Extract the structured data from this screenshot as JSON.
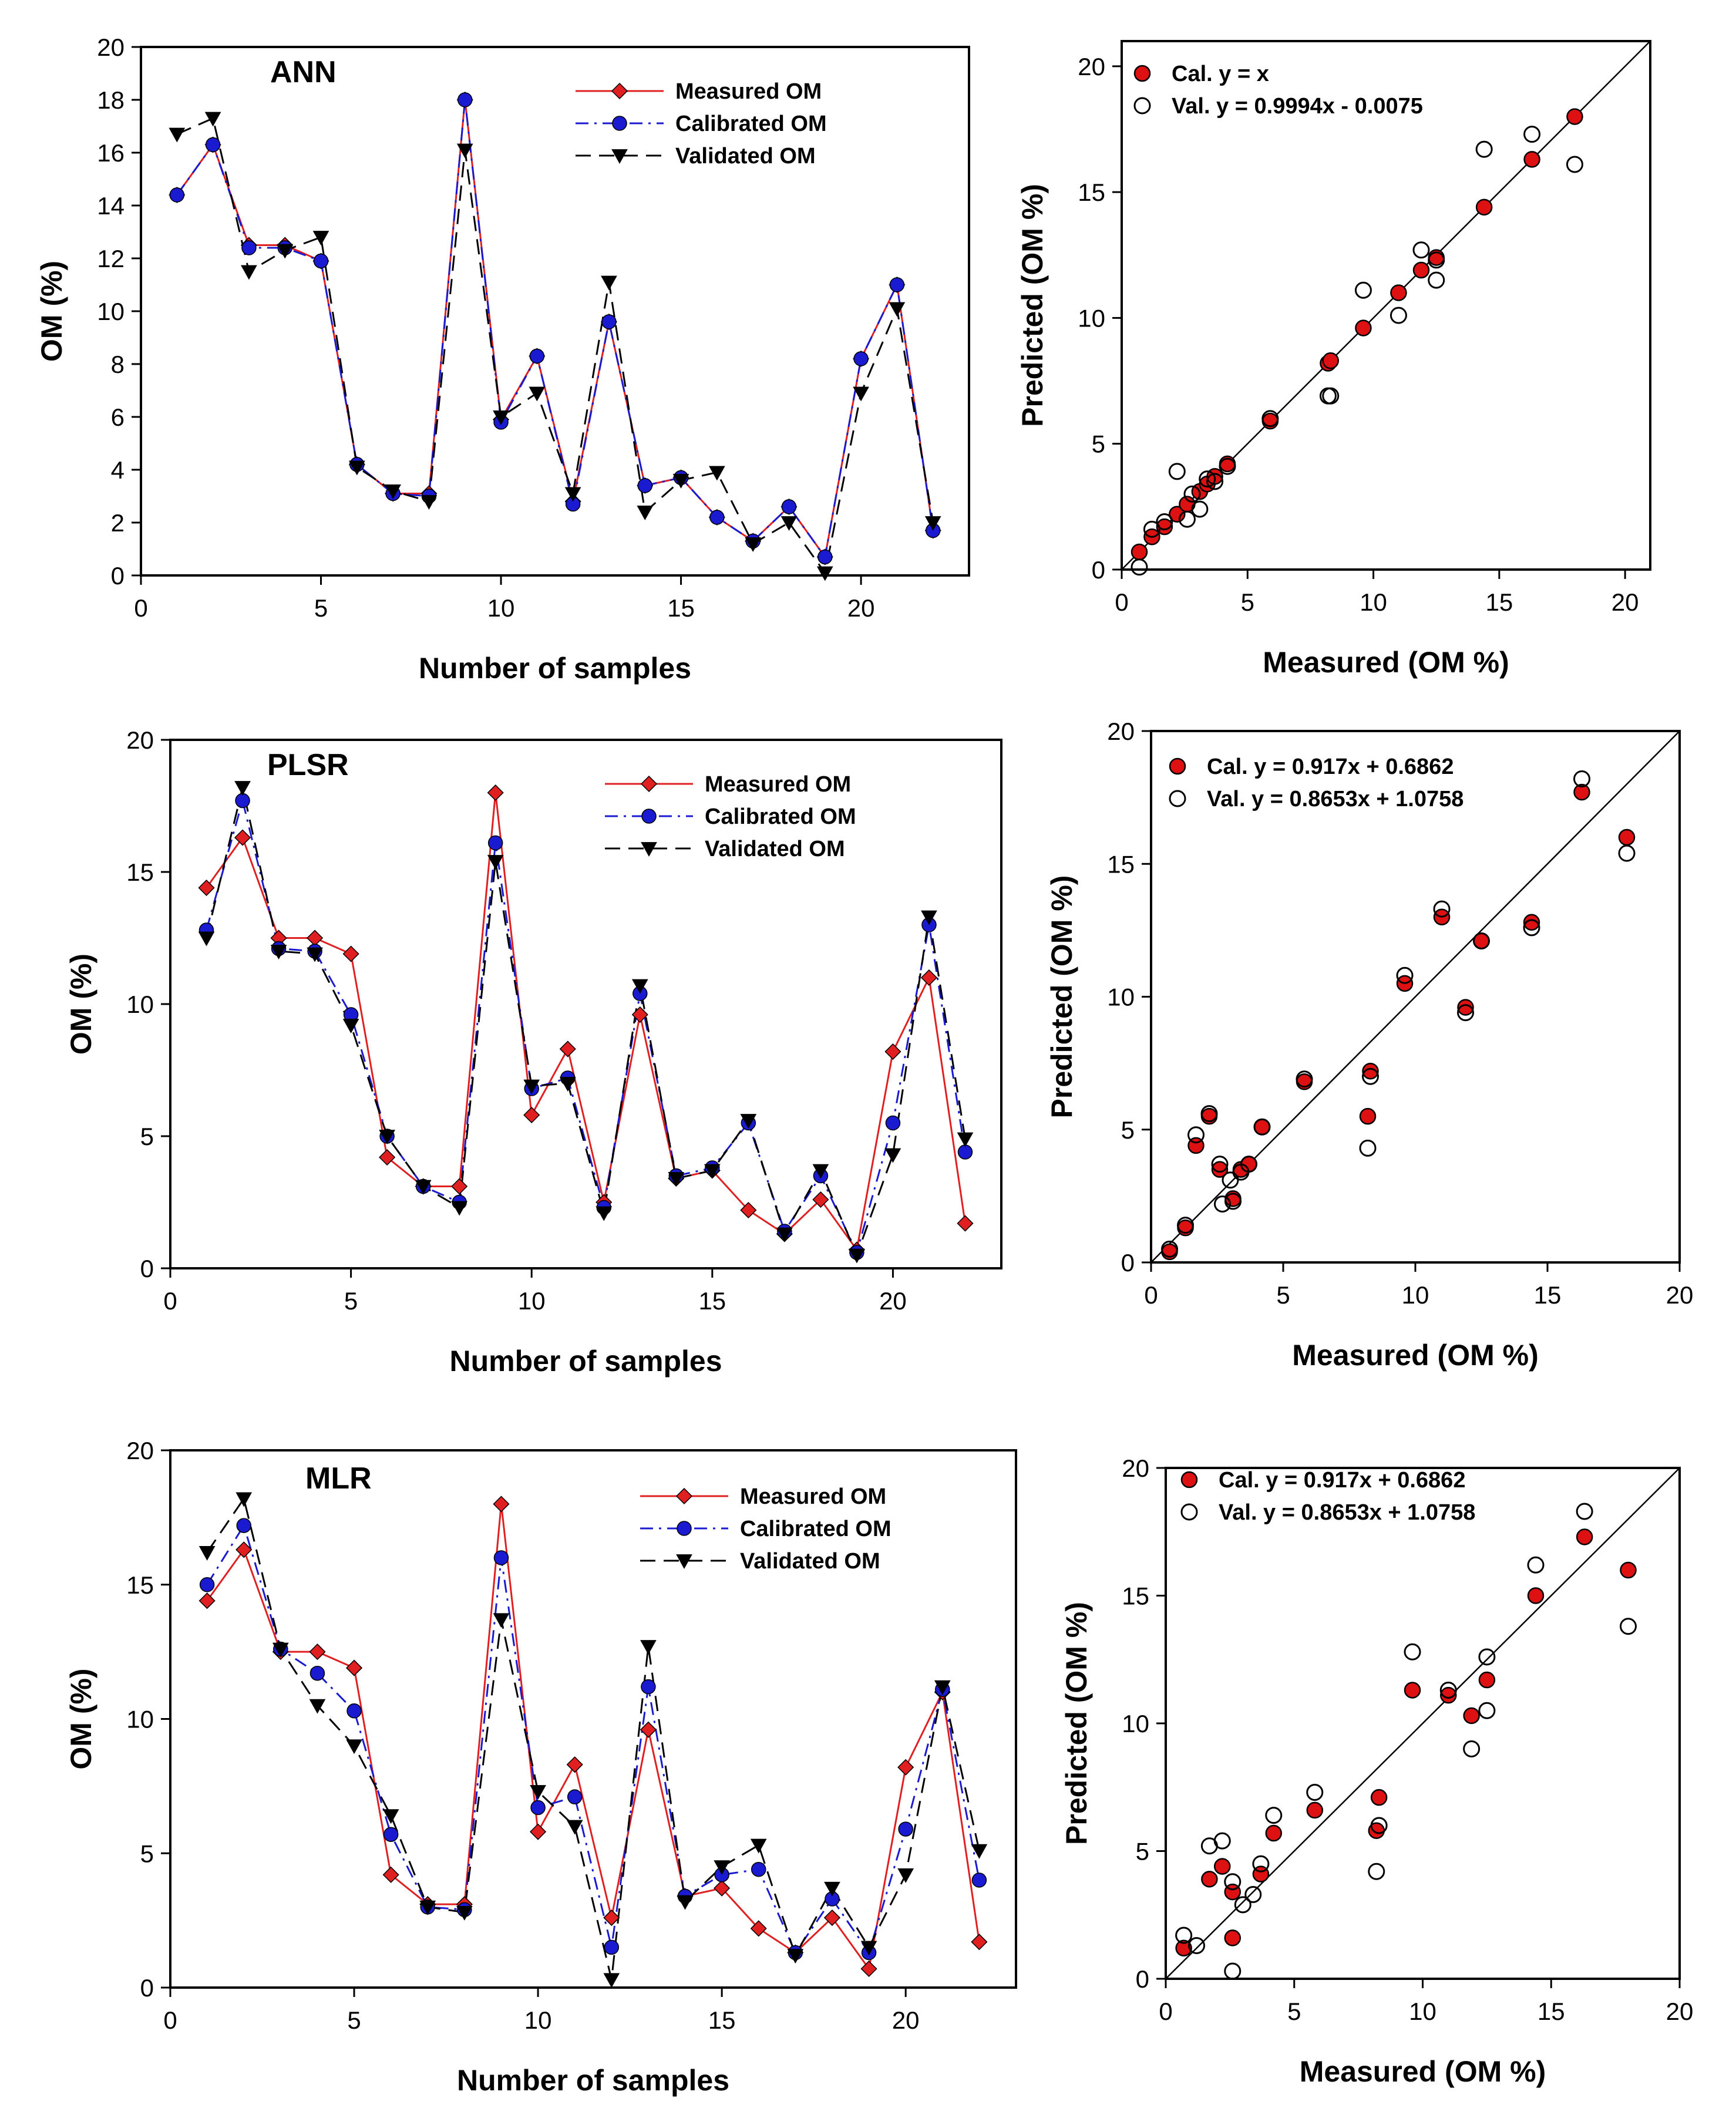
{
  "colors": {
    "measured": "#e02020",
    "calibrated": "#1a1ad0",
    "validated": "#000000",
    "cal_fill": "#dd1111",
    "line_11": "#000000"
  },
  "chart_data": [
    {
      "type": "line",
      "title": "ANN",
      "xlabel": "Number of samples",
      "ylabel": "OM (%)",
      "xlim": [
        0,
        23
      ],
      "ylim": [
        0,
        20
      ],
      "xticks": [
        0,
        5,
        10,
        15,
        20
      ],
      "yticks": [
        0,
        2,
        4,
        6,
        8,
        10,
        12,
        14,
        16,
        18,
        20
      ],
      "legend_position": "top-right",
      "x": [
        1,
        2,
        3,
        4,
        5,
        6,
        7,
        8,
        9,
        10,
        11,
        12,
        13,
        14,
        15,
        16,
        17,
        18,
        19,
        20,
        21,
        22
      ],
      "series": [
        {
          "name": "Measured OM",
          "values": [
            14.4,
            16.3,
            12.5,
            12.5,
            11.9,
            4.2,
            3.1,
            3.1,
            18.0,
            5.9,
            8.3,
            2.8,
            9.6,
            3.4,
            3.7,
            2.2,
            1.3,
            2.6,
            0.7,
            8.2,
            11.0,
            1.7
          ]
        },
        {
          "name": "Calibrated OM",
          "values": [
            14.4,
            16.3,
            12.4,
            12.4,
            11.9,
            4.2,
            3.1,
            3.0,
            18.0,
            5.8,
            8.3,
            2.7,
            9.6,
            3.4,
            3.7,
            2.2,
            1.3,
            2.6,
            0.7,
            8.2,
            11.0,
            1.7
          ]
        },
        {
          "name": "Validated   OM",
          "values": [
            16.7,
            17.3,
            11.5,
            12.3,
            12.8,
            4.1,
            3.2,
            2.8,
            16.1,
            6.0,
            6.9,
            3.1,
            11.1,
            2.4,
            3.6,
            3.9,
            1.2,
            2.0,
            0.1,
            6.9,
            10.1,
            2.0
          ]
        }
      ]
    },
    {
      "type": "scatter",
      "xlabel": "Measured (OM %)",
      "ylabel": "Predicted (OM %)",
      "xlim": [
        0,
        21
      ],
      "ylim": [
        0,
        21
      ],
      "xticks": [
        0,
        5,
        10,
        15,
        20
      ],
      "yticks": [
        0,
        5,
        10,
        15,
        20
      ],
      "legend_position": "top-left",
      "series": [
        {
          "name": "Cal.",
          "equation": "y = x",
          "points": [
            [
              0.7,
              0.7
            ],
            [
              1.2,
              1.3
            ],
            [
              1.7,
              1.7
            ],
            [
              2.2,
              2.2
            ],
            [
              2.6,
              2.6
            ],
            [
              3.1,
              3.1
            ],
            [
              3.4,
              3.4
            ],
            [
              3.7,
              3.7
            ],
            [
              4.2,
              4.2
            ],
            [
              5.9,
              5.9
            ],
            [
              8.2,
              8.2
            ],
            [
              8.3,
              8.3
            ],
            [
              9.6,
              9.6
            ],
            [
              11.0,
              11.0
            ],
            [
              11.9,
              11.9
            ],
            [
              12.5,
              12.4
            ],
            [
              14.4,
              14.4
            ],
            [
              16.3,
              16.3
            ],
            [
              18.0,
              18.0
            ]
          ]
        },
        {
          "name": "Val.",
          "equation": "y = 0.9994x - 0.0075",
          "points": [
            [
              0.7,
              0.1
            ],
            [
              1.2,
              1.6
            ],
            [
              1.7,
              1.9
            ],
            [
              2.2,
              3.9
            ],
            [
              2.6,
              2.0
            ],
            [
              2.8,
              3.0
            ],
            [
              3.1,
              2.4
            ],
            [
              3.4,
              3.6
            ],
            [
              3.7,
              3.5
            ],
            [
              4.2,
              4.1
            ],
            [
              5.9,
              6.0
            ],
            [
              8.2,
              6.9
            ],
            [
              8.3,
              6.9
            ],
            [
              9.6,
              11.1
            ],
            [
              11.0,
              10.1
            ],
            [
              11.9,
              12.7
            ],
            [
              12.5,
              11.5
            ],
            [
              12.5,
              12.3
            ],
            [
              14.4,
              16.7
            ],
            [
              16.3,
              17.3
            ],
            [
              18.0,
              16.1
            ]
          ]
        }
      ]
    },
    {
      "type": "line",
      "title": "PLSR",
      "xlabel": "Number of samples",
      "ylabel": "OM (%)",
      "xlim": [
        0,
        23
      ],
      "ylim": [
        0,
        20
      ],
      "xticks": [
        0,
        5,
        10,
        15,
        20
      ],
      "yticks": [
        0,
        5,
        10,
        15,
        20
      ],
      "legend_position": "top-right",
      "x": [
        1,
        2,
        3,
        4,
        5,
        6,
        7,
        8,
        9,
        10,
        11,
        12,
        13,
        14,
        15,
        16,
        17,
        18,
        19,
        20,
        21,
        22
      ],
      "series": [
        {
          "name": "Measured OM",
          "values": [
            14.4,
            16.3,
            12.5,
            12.5,
            11.9,
            4.2,
            3.1,
            3.1,
            18.0,
            5.8,
            8.3,
            2.5,
            9.6,
            3.4,
            3.7,
            2.2,
            1.3,
            2.6,
            0.7,
            8.2,
            11.0,
            1.7
          ]
        },
        {
          "name": "Calibrated OM",
          "values": [
            12.8,
            17.7,
            12.1,
            12.0,
            9.6,
            5.0,
            3.1,
            2.5,
            16.1,
            6.8,
            7.2,
            2.3,
            10.4,
            3.5,
            3.8,
            5.5,
            1.4,
            3.5,
            0.6,
            5.5,
            13.0,
            4.4
          ]
        },
        {
          "name": "Validated   OM",
          "values": [
            12.5,
            18.2,
            12.0,
            11.9,
            9.2,
            5.0,
            3.1,
            2.3,
            15.4,
            6.9,
            7.0,
            2.1,
            10.7,
            3.4,
            3.7,
            5.6,
            1.3,
            3.7,
            0.5,
            4.3,
            13.3,
            4.9
          ]
        }
      ]
    },
    {
      "type": "scatter",
      "xlabel": "Measured (OM %)",
      "ylabel": "Predicted (OM %)",
      "xlim": [
        0,
        20
      ],
      "ylim": [
        0,
        20
      ],
      "xticks": [
        0,
        5,
        10,
        15,
        20
      ],
      "yticks": [
        0,
        5,
        10,
        15,
        20
      ],
      "legend_position": "top-left",
      "series": [
        {
          "name": "Cal.",
          "equation": "y = 0.917x + 0.6862",
          "points": [
            [
              0.7,
              0.4
            ],
            [
              1.3,
              1.3
            ],
            [
              1.7,
              4.4
            ],
            [
              2.2,
              5.5
            ],
            [
              2.6,
              3.5
            ],
            [
              3.1,
              2.4
            ],
            [
              3.4,
              3.5
            ],
            [
              3.7,
              3.7
            ],
            [
              4.2,
              5.1
            ],
            [
              5.8,
              6.8
            ],
            [
              8.2,
              5.5
            ],
            [
              8.3,
              7.2
            ],
            [
              9.6,
              10.5
            ],
            [
              11.0,
              13.0
            ],
            [
              11.9,
              9.6
            ],
            [
              12.5,
              12.1
            ],
            [
              14.4,
              12.8
            ],
            [
              16.3,
              17.7
            ],
            [
              18.0,
              16.0
            ]
          ]
        },
        {
          "name": "Val.",
          "equation": "y = 0.8653x + 1.0758",
          "points": [
            [
              0.7,
              0.5
            ],
            [
              1.3,
              1.4
            ],
            [
              1.7,
              4.8
            ],
            [
              2.2,
              5.6
            ],
            [
              2.6,
              3.7
            ],
            [
              2.7,
              2.2
            ],
            [
              3.0,
              3.1
            ],
            [
              3.1,
              2.3
            ],
            [
              3.4,
              3.4
            ],
            [
              3.7,
              3.7
            ],
            [
              4.2,
              5.1
            ],
            [
              5.8,
              6.9
            ],
            [
              8.2,
              4.3
            ],
            [
              8.3,
              7.0
            ],
            [
              9.6,
              10.8
            ],
            [
              11.0,
              13.3
            ],
            [
              11.9,
              9.4
            ],
            [
              12.5,
              12.1
            ],
            [
              14.4,
              12.6
            ],
            [
              16.3,
              18.2
            ],
            [
              18.0,
              15.4
            ]
          ]
        }
      ]
    },
    {
      "type": "line",
      "title": "MLR",
      "xlabel": "Number of samples",
      "ylabel": "OM (%)",
      "xlim": [
        0,
        23
      ],
      "ylim": [
        0,
        20
      ],
      "xticks": [
        0,
        5,
        10,
        15,
        20
      ],
      "yticks": [
        0,
        5,
        10,
        15,
        20
      ],
      "legend_position": "top-right",
      "x": [
        1,
        2,
        3,
        4,
        5,
        6,
        7,
        8,
        9,
        10,
        11,
        12,
        13,
        14,
        15,
        16,
        17,
        18,
        19,
        20,
        21,
        22
      ],
      "series": [
        {
          "name": "Measured OM",
          "values": [
            14.4,
            16.3,
            12.5,
            12.5,
            11.9,
            4.2,
            3.1,
            3.1,
            18.0,
            5.8,
            8.3,
            2.6,
            9.6,
            3.4,
            3.7,
            2.2,
            1.3,
            2.6,
            0.7,
            8.2,
            11.0,
            1.7
          ]
        },
        {
          "name": "Calibrated OM",
          "values": [
            15.0,
            17.2,
            12.6,
            11.7,
            10.3,
            5.7,
            3.0,
            2.9,
            16.0,
            6.7,
            7.1,
            1.5,
            11.2,
            3.4,
            4.2,
            4.4,
            1.3,
            3.3,
            1.3,
            5.9,
            11.1,
            4.0
          ]
        },
        {
          "name": "Validated   OM",
          "values": [
            16.2,
            18.2,
            12.6,
            10.5,
            9.0,
            6.4,
            3.0,
            2.8,
            13.7,
            7.3,
            6.0,
            0.3,
            12.7,
            3.2,
            4.5,
            5.3,
            1.2,
            3.7,
            1.5,
            4.2,
            11.2,
            5.1
          ]
        }
      ]
    },
    {
      "type": "scatter",
      "xlabel": "Measured (OM %)",
      "ylabel": "Predicted (OM %)",
      "xlim": [
        0,
        20
      ],
      "ylim": [
        0,
        20
      ],
      "xticks": [
        0,
        5,
        10,
        15,
        20
      ],
      "yticks": [
        0,
        5,
        10,
        15,
        20
      ],
      "legend_position": "top-left",
      "series": [
        {
          "name": "Cal.",
          "equation": "y = 0.917x + 0.6862",
          "points": [
            [
              0.7,
              1.2
            ],
            [
              1.7,
              3.9
            ],
            [
              2.2,
              4.4
            ],
            [
              2.6,
              3.4
            ],
            [
              2.6,
              1.6
            ],
            [
              3.7,
              4.1
            ],
            [
              4.2,
              5.7
            ],
            [
              5.8,
              6.6
            ],
            [
              8.2,
              5.8
            ],
            [
              8.3,
              7.1
            ],
            [
              9.6,
              11.3
            ],
            [
              11.0,
              11.1
            ],
            [
              11.9,
              10.3
            ],
            [
              12.5,
              11.7
            ],
            [
              14.4,
              15.0
            ],
            [
              16.3,
              17.3
            ],
            [
              18.0,
              16.0
            ]
          ]
        },
        {
          "name": "Val.",
          "equation": "y = 0.8653x + 1.0758",
          "points": [
            [
              0.7,
              1.7
            ],
            [
              1.2,
              1.3
            ],
            [
              1.7,
              5.2
            ],
            [
              2.2,
              5.4
            ],
            [
              2.6,
              3.8
            ],
            [
              2.6,
              0.3
            ],
            [
              3.0,
              2.9
            ],
            [
              3.4,
              3.3
            ],
            [
              3.7,
              4.5
            ],
            [
              4.2,
              6.4
            ],
            [
              5.8,
              7.3
            ],
            [
              8.2,
              4.2
            ],
            [
              8.3,
              6.0
            ],
            [
              9.6,
              12.8
            ],
            [
              11.0,
              11.3
            ],
            [
              11.9,
              9.0
            ],
            [
              12.5,
              12.6
            ],
            [
              12.5,
              10.5
            ],
            [
              14.4,
              16.2
            ],
            [
              16.3,
              18.3
            ],
            [
              18.0,
              13.8
            ]
          ]
        }
      ]
    }
  ]
}
